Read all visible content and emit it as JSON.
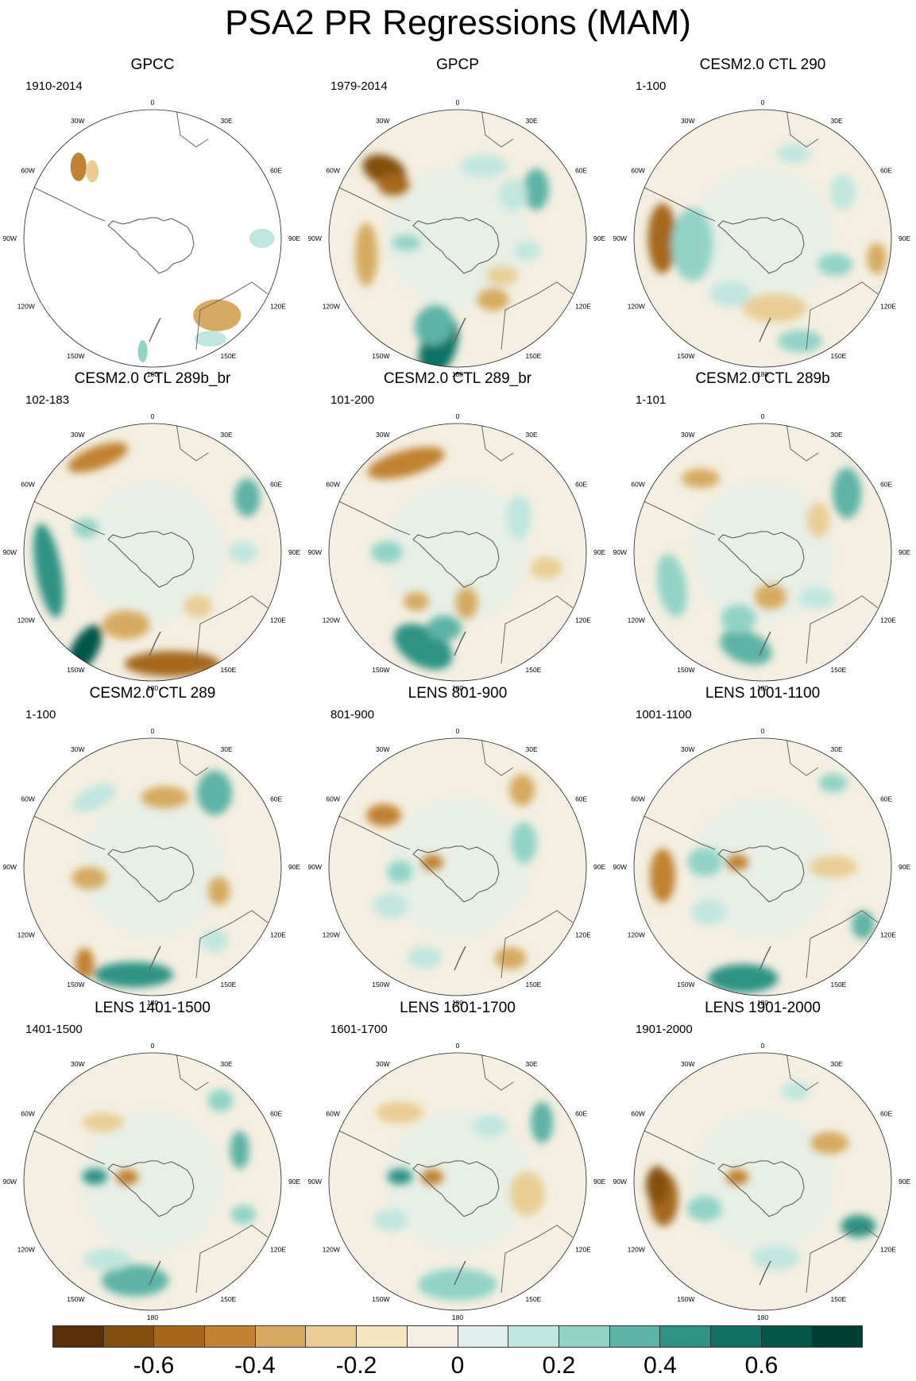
{
  "title": "PSA2 PR Regressions (MAM)",
  "longitude_labels": [
    "0",
    "30E",
    "60E",
    "90E",
    "120E",
    "150E",
    "180",
    "150W",
    "120W",
    "90W",
    "60W",
    "30W"
  ],
  "panels": [
    {
      "title": "GPCC",
      "period": "1910-2014"
    },
    {
      "title": "GPCP",
      "period": "1979-2014"
    },
    {
      "title": "CESM2.0 CTL 290",
      "period": "1-100"
    },
    {
      "title": "CESM2.0 CTL 289b_br",
      "period": "102-183"
    },
    {
      "title": "CESM2.0 CTL 289_br",
      "period": "101-200"
    },
    {
      "title": "CESM2.0 CTL 289b",
      "period": "1-101"
    },
    {
      "title": "CESM2.0 CTL 289",
      "period": "1-100"
    },
    {
      "title": "LENS 801-900",
      "period": "801-900"
    },
    {
      "title": "LENS 1001-1100",
      "period": "1001-1100"
    },
    {
      "title": "LENS 1401-1500",
      "period": "1401-1500"
    },
    {
      "title": "LENS 1601-1700",
      "period": "1601-1700"
    },
    {
      "title": "LENS 1901-2000",
      "period": "1901-2000"
    }
  ],
  "colorbar": {
    "colors": [
      "#5a3008",
      "#83500f",
      "#a5671c",
      "#c18233",
      "#d6aa60",
      "#e9cd95",
      "#f5e6c1",
      "#f4efe2",
      "#e0efec",
      "#c1e6df",
      "#92d3c6",
      "#5db3a5",
      "#2f9384",
      "#117165",
      "#035749",
      "#013f34"
    ],
    "tick_labels": [
      "-0.6",
      "-0.4",
      "-0.2",
      "0",
      "0.2",
      "0.4",
      "0.6"
    ],
    "tick_values": [
      -0.6,
      -0.4,
      -0.2,
      0,
      0.2,
      0.4,
      0.6
    ],
    "min": -0.8,
    "max": 0.8
  }
}
